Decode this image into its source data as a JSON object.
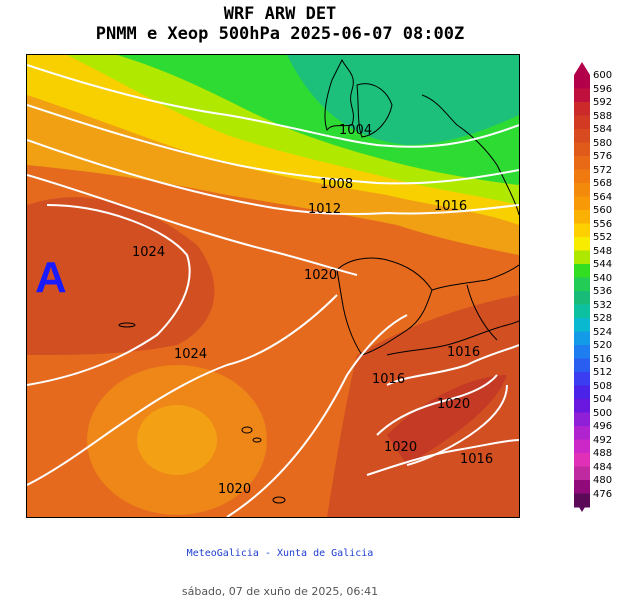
{
  "header": {
    "title_line1": "WRF ARW DET",
    "title_line2": "PNMM e Xeop 500hPa 2025-06-07 08:00Z"
  },
  "map": {
    "high_marker": "A",
    "isobars": [
      "1004",
      "1008",
      "1012",
      "1016",
      "1020",
      "1024",
      "1024",
      "1016",
      "1016",
      "1020",
      "1016",
      "1020",
      "1020"
    ]
  },
  "legend": {
    "unit_levels": [
      "600",
      "596",
      "592",
      "588",
      "584",
      "580",
      "576",
      "572",
      "568",
      "564",
      "560",
      "556",
      "552",
      "548",
      "544",
      "540",
      "536",
      "532",
      "528",
      "524",
      "520",
      "516",
      "512",
      "508",
      "504",
      "500",
      "496",
      "492",
      "488",
      "484",
      "480",
      "476"
    ],
    "colors": [
      "#b3004a",
      "#c0103e",
      "#cc2a2a",
      "#d23a24",
      "#d84a1f",
      "#e05a1a",
      "#e86a16",
      "#f07a10",
      "#f48a0c",
      "#f89a08",
      "#fbb004",
      "#ffd000",
      "#f8ec00",
      "#aee800",
      "#33dd22",
      "#22cc55",
      "#18bb77",
      "#0cc0a0",
      "#0ab8d0",
      "#149be8",
      "#1e7ef0",
      "#2a5ef0",
      "#3a3ef0",
      "#4a22e8",
      "#6a18e0",
      "#9020d8",
      "#b024d0",
      "#cc28c8",
      "#e030b8",
      "#c02aa0",
      "#900a7a",
      "#5a0a56"
    ]
  },
  "footer": {
    "credit": "MeteoGalicia - Xunta de Galicia",
    "timestamp": "sábado, 07 de xuño de 2025, 06:41"
  }
}
